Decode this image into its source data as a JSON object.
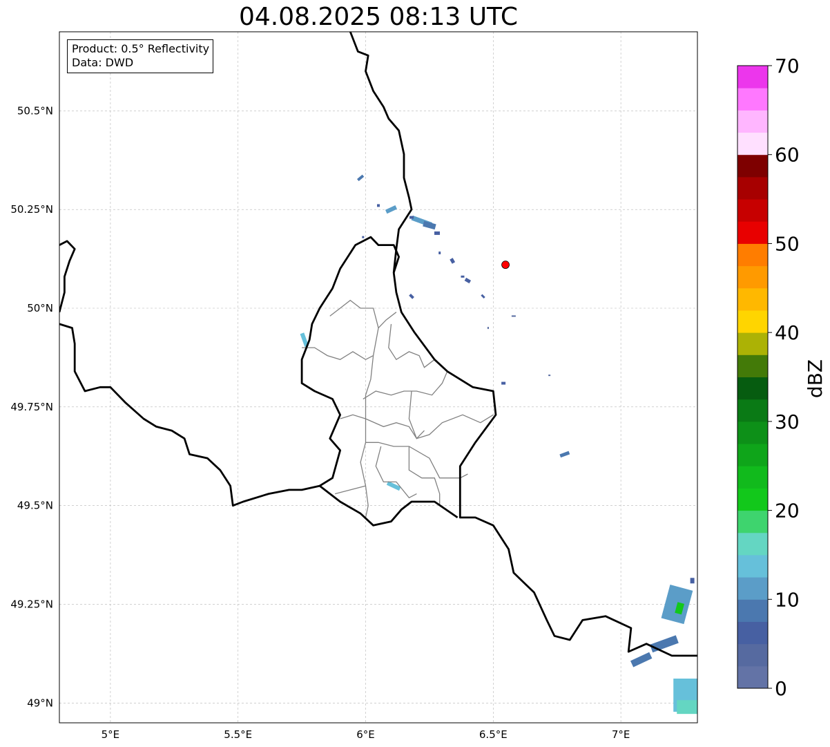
{
  "title": "04.08.2025 08:13 UTC",
  "info_box": {
    "product_label": "Product: 0.5° Reflectivity",
    "data_label": "Data: DWD"
  },
  "colorbar": {
    "label": "dBZ",
    "ticks": [
      {
        "value": 0,
        "label": "0"
      },
      {
        "value": 10,
        "label": "10"
      },
      {
        "value": 20,
        "label": "20"
      },
      {
        "value": 30,
        "label": "30"
      },
      {
        "value": 40,
        "label": "40"
      },
      {
        "value": 50,
        "label": "50"
      },
      {
        "value": 60,
        "label": "60"
      },
      {
        "value": 70,
        "label": "70"
      }
    ],
    "colors": [
      "#6373a6",
      "#566aa0",
      "#4760a2",
      "#4b78af",
      "#5b9dc8",
      "#66c0da",
      "#64d6c2",
      "#3ed46e",
      "#12c81b",
      "#11ba1c",
      "#0fa51a",
      "#0d9018",
      "#0a7a15",
      "#065c10",
      "#437a08",
      "#acb205",
      "#ffd500",
      "#ffb800",
      "#ff9a00",
      "#ff7d00",
      "#e80000",
      "#c70000",
      "#a70000",
      "#7e0000",
      "#ffe0ff",
      "#ffb6ff",
      "#ff78ff",
      "#ec36ec"
    ]
  },
  "map": {
    "lon_range": [
      4.8,
      7.3
    ],
    "lat_range": [
      48.95,
      50.7
    ],
    "x_ticks": [
      {
        "value": 5.0,
        "label": "5°E"
      },
      {
        "value": 5.5,
        "label": "5.5°E"
      },
      {
        "value": 6.0,
        "label": "6°E"
      },
      {
        "value": 6.5,
        "label": "6.5°E"
      },
      {
        "value": 7.0,
        "label": "7°E"
      }
    ],
    "y_ticks": [
      {
        "value": 49.0,
        "label": "49°N"
      },
      {
        "value": 49.25,
        "label": "49.25°N"
      },
      {
        "value": 49.5,
        "label": "49.5°N"
      },
      {
        "value": 49.75,
        "label": "49.75°N"
      },
      {
        "value": 50.0,
        "label": "50°N"
      },
      {
        "value": 50.25,
        "label": "50.25°N"
      },
      {
        "value": 50.5,
        "label": "50.5°N"
      }
    ],
    "radar_site": {
      "lon": 6.548,
      "lat": 50.11,
      "color": "#ff0000"
    },
    "borders": [
      [
        [
          5.94,
          50.7
        ],
        [
          5.97,
          50.65
        ],
        [
          6.01,
          50.64
        ],
        [
          6.0,
          50.6
        ],
        [
          6.03,
          50.55
        ],
        [
          6.07,
          50.51
        ],
        [
          6.09,
          50.48
        ],
        [
          6.13,
          50.45
        ],
        [
          6.15,
          50.39
        ],
        [
          6.15,
          50.33
        ],
        [
          6.17,
          50.28
        ],
        [
          6.18,
          50.25
        ],
        [
          6.13,
          50.2
        ],
        [
          6.12,
          50.15
        ],
        [
          6.11,
          50.09
        ],
        [
          6.12,
          50.04
        ],
        [
          6.14,
          49.99
        ],
        [
          6.19,
          49.94
        ],
        [
          6.27,
          49.87
        ],
        [
          6.32,
          49.84
        ],
        [
          6.42,
          49.8
        ],
        [
          6.5,
          49.79
        ],
        [
          6.51,
          49.73
        ],
        [
          6.43,
          49.66
        ],
        [
          6.37,
          49.6
        ],
        [
          6.37,
          49.47
        ],
        [
          6.43,
          49.47
        ],
        [
          6.5,
          49.45
        ],
        [
          6.56,
          49.39
        ],
        [
          6.58,
          49.33
        ],
        [
          6.66,
          49.28
        ],
        [
          6.71,
          49.21
        ],
        [
          6.74,
          49.17
        ],
        [
          6.8,
          49.16
        ],
        [
          6.85,
          49.21
        ],
        [
          6.94,
          49.22
        ],
        [
          7.04,
          49.19
        ],
        [
          7.03,
          49.13
        ],
        [
          7.1,
          49.15
        ],
        [
          7.2,
          49.12
        ],
        [
          7.3,
          49.12
        ]
      ],
      [
        [
          4.8,
          50.16
        ],
        [
          4.83,
          50.17
        ],
        [
          4.86,
          50.15
        ],
        [
          4.84,
          50.12
        ],
        [
          4.82,
          50.08
        ],
        [
          4.82,
          50.04
        ],
        [
          4.8,
          49.99
        ],
        [
          4.8,
          49.99
        ]
      ],
      [
        [
          4.8,
          49.96
        ],
        [
          4.85,
          49.95
        ],
        [
          4.86,
          49.91
        ],
        [
          4.86,
          49.87
        ],
        [
          4.86,
          49.84
        ],
        [
          4.9,
          49.79
        ],
        [
          4.96,
          49.8
        ],
        [
          5.0,
          49.8
        ],
        [
          5.06,
          49.76
        ],
        [
          5.13,
          49.72
        ],
        [
          5.18,
          49.7
        ],
        [
          5.24,
          49.69
        ],
        [
          5.29,
          49.67
        ],
        [
          5.31,
          49.63
        ],
        [
          5.38,
          49.62
        ],
        [
          5.43,
          49.59
        ],
        [
          5.47,
          49.55
        ],
        [
          5.48,
          49.5
        ],
        [
          5.52,
          49.51
        ],
        [
          5.62,
          49.53
        ],
        [
          5.7,
          49.54
        ],
        [
          5.75,
          49.54
        ],
        [
          5.82,
          49.55
        ],
        [
          5.9,
          49.51
        ],
        [
          5.98,
          49.48
        ],
        [
          6.03,
          49.45
        ],
        [
          6.1,
          49.46
        ],
        [
          6.14,
          49.49
        ],
        [
          6.18,
          49.51
        ],
        [
          6.27,
          49.51
        ],
        [
          6.36,
          49.47
        ]
      ],
      [
        [
          5.82,
          49.55
        ],
        [
          5.87,
          49.57
        ],
        [
          5.9,
          49.64
        ],
        [
          5.86,
          49.67
        ],
        [
          5.9,
          49.73
        ],
        [
          5.87,
          49.77
        ],
        [
          5.8,
          49.79
        ],
        [
          5.75,
          49.81
        ],
        [
          5.75,
          49.87
        ],
        [
          5.78,
          49.92
        ],
        [
          5.79,
          49.96
        ],
        [
          5.82,
          50.0
        ],
        [
          5.87,
          50.05
        ],
        [
          5.9,
          50.1
        ],
        [
          5.96,
          50.16
        ],
        [
          6.02,
          50.18
        ],
        [
          6.05,
          50.16
        ],
        [
          6.11,
          50.16
        ],
        [
          6.13,
          50.13
        ],
        [
          6.11,
          50.09
        ]
      ]
    ],
    "cantons": [
      [
        [
          5.86,
          49.98
        ],
        [
          5.9,
          50.0
        ],
        [
          5.94,
          50.02
        ],
        [
          5.98,
          50.0
        ],
        [
          6.03,
          50.0
        ],
        [
          6.05,
          49.95
        ],
        [
          6.08,
          49.97
        ],
        [
          6.12,
          49.99
        ]
      ],
      [
        [
          6.05,
          49.95
        ],
        [
          6.03,
          49.88
        ],
        [
          6.02,
          49.82
        ],
        [
          6.0,
          49.78
        ]
      ],
      [
        [
          6.1,
          49.96
        ],
        [
          6.09,
          49.9
        ],
        [
          6.12,
          49.87
        ],
        [
          6.17,
          49.89
        ],
        [
          6.21,
          49.88
        ],
        [
          6.23,
          49.85
        ],
        [
          6.27,
          49.87
        ]
      ],
      [
        [
          5.75,
          49.9
        ],
        [
          5.8,
          49.9
        ],
        [
          5.85,
          49.88
        ],
        [
          5.9,
          49.87
        ],
        [
          5.95,
          49.89
        ],
        [
          6.0,
          49.87
        ],
        [
          6.03,
          49.88
        ]
      ],
      [
        [
          5.99,
          49.77
        ],
        [
          6.04,
          49.79
        ],
        [
          6.1,
          49.78
        ],
        [
          6.15,
          49.79
        ],
        [
          6.2,
          49.79
        ],
        [
          6.26,
          49.78
        ],
        [
          6.3,
          49.81
        ],
        [
          6.32,
          49.84
        ]
      ],
      [
        [
          6.0,
          49.78
        ],
        [
          6.0,
          49.72
        ],
        [
          6.0,
          49.66
        ],
        [
          5.98,
          49.61
        ],
        [
          6.0,
          49.55
        ],
        [
          6.01,
          49.5
        ],
        [
          6.0,
          49.47
        ]
      ],
      [
        [
          6.18,
          49.79
        ],
        [
          6.17,
          49.72
        ],
        [
          6.2,
          49.67
        ],
        [
          6.23,
          49.69
        ]
      ],
      [
        [
          6.0,
          49.72
        ],
        [
          6.07,
          49.7
        ],
        [
          6.12,
          49.71
        ],
        [
          6.17,
          49.7
        ],
        [
          6.2,
          49.67
        ],
        [
          6.25,
          49.68
        ],
        [
          6.3,
          49.71
        ],
        [
          6.38,
          49.73
        ],
        [
          6.45,
          49.71
        ],
        [
          6.5,
          49.73
        ]
      ],
      [
        [
          5.9,
          49.72
        ],
        [
          5.95,
          49.73
        ],
        [
          6.0,
          49.72
        ]
      ],
      [
        [
          6.0,
          49.66
        ],
        [
          6.05,
          49.66
        ],
        [
          6.11,
          49.65
        ],
        [
          6.17,
          49.65
        ],
        [
          6.25,
          49.62
        ],
        [
          6.29,
          49.57
        ],
        [
          6.37,
          49.57
        ],
        [
          6.4,
          49.58
        ]
      ],
      [
        [
          6.06,
          49.65
        ],
        [
          6.04,
          49.6
        ],
        [
          6.07,
          49.56
        ],
        [
          6.12,
          49.56
        ],
        [
          6.17,
          49.52
        ],
        [
          6.2,
          49.53
        ]
      ],
      [
        [
          6.17,
          49.65
        ],
        [
          6.17,
          49.59
        ],
        [
          6.22,
          49.57
        ],
        [
          6.27,
          49.57
        ],
        [
          6.29,
          49.53
        ],
        [
          6.29,
          49.5
        ]
      ],
      [
        [
          5.88,
          49.53
        ],
        [
          5.94,
          49.54
        ],
        [
          6.0,
          49.55
        ]
      ]
    ],
    "echoes": [
      {
        "lon": 5.98,
        "lat": 50.33,
        "w": 10,
        "h": 4,
        "rot": -40,
        "dbz": 8
      },
      {
        "lon": 6.1,
        "lat": 50.25,
        "w": 16,
        "h": 6,
        "rot": -25,
        "dbz": 10
      },
      {
        "lon": 6.05,
        "lat": 50.26,
        "w": 4,
        "h": 4,
        "rot": 0,
        "dbz": 5
      },
      {
        "lon": 6.22,
        "lat": 50.22,
        "w": 30,
        "h": 7,
        "rot": 20,
        "dbz": 12
      },
      {
        "lon": 6.25,
        "lat": 50.21,
        "w": 18,
        "h": 8,
        "rot": 15,
        "dbz": 9
      },
      {
        "lon": 6.18,
        "lat": 50.23,
        "w": 6,
        "h": 4,
        "rot": 0,
        "dbz": 6
      },
      {
        "lon": 6.28,
        "lat": 50.19,
        "w": 8,
        "h": 5,
        "rot": 0,
        "dbz": 7
      },
      {
        "lon": 5.99,
        "lat": 50.18,
        "w": 3,
        "h": 3,
        "rot": 0,
        "dbz": 5
      },
      {
        "lon": 6.29,
        "lat": 50.14,
        "w": 3,
        "h": 4,
        "rot": 0,
        "dbz": 5
      },
      {
        "lon": 6.34,
        "lat": 50.12,
        "w": 7,
        "h": 5,
        "rot": 60,
        "dbz": 6
      },
      {
        "lon": 6.38,
        "lat": 50.08,
        "w": 5,
        "h": 3,
        "rot": 0,
        "dbz": 5
      },
      {
        "lon": 6.4,
        "lat": 50.07,
        "w": 8,
        "h": 5,
        "rot": 30,
        "dbz": 6
      },
      {
        "lon": 6.46,
        "lat": 50.03,
        "w": 6,
        "h": 3,
        "rot": 45,
        "dbz": 5
      },
      {
        "lon": 6.18,
        "lat": 50.03,
        "w": 7,
        "h": 4,
        "rot": 45,
        "dbz": 6
      },
      {
        "lon": 6.58,
        "lat": 49.98,
        "w": 6,
        "h": 2,
        "rot": 0,
        "dbz": 4
      },
      {
        "lon": 6.48,
        "lat": 49.95,
        "w": 2,
        "h": 3,
        "rot": 0,
        "dbz": 4
      },
      {
        "lon": 5.76,
        "lat": 49.92,
        "w": 6,
        "h": 20,
        "rot": -20,
        "dbz": 14
      },
      {
        "lon": 6.54,
        "lat": 49.81,
        "w": 6,
        "h": 4,
        "rot": 0,
        "dbz": 6
      },
      {
        "lon": 6.72,
        "lat": 49.83,
        "w": 3,
        "h": 2,
        "rot": 0,
        "dbz": 4
      },
      {
        "lon": 6.78,
        "lat": 49.63,
        "w": 14,
        "h": 5,
        "rot": -20,
        "dbz": 8
      },
      {
        "lon": 6.11,
        "lat": 49.55,
        "w": 20,
        "h": 6,
        "rot": 25,
        "dbz": 13
      },
      {
        "lon": 7.22,
        "lat": 49.25,
        "w": 34,
        "h": 50,
        "rot": 15,
        "dbz": 12
      },
      {
        "lon": 7.23,
        "lat": 49.24,
        "w": 10,
        "h": 16,
        "rot": 15,
        "dbz": 20
      },
      {
        "lon": 7.17,
        "lat": 49.15,
        "w": 40,
        "h": 12,
        "rot": -20,
        "dbz": 9
      },
      {
        "lon": 7.08,
        "lat": 49.11,
        "w": 30,
        "h": 10,
        "rot": -25,
        "dbz": 8
      },
      {
        "lon": 7.28,
        "lat": 49.31,
        "w": 6,
        "h": 8,
        "rot": 0,
        "dbz": 6
      },
      {
        "lon": 7.26,
        "lat": 49.02,
        "w": 40,
        "h": 48,
        "rot": 0,
        "dbz": 14
      },
      {
        "lon": 7.26,
        "lat": 48.99,
        "w": 30,
        "h": 20,
        "rot": 0,
        "dbz": 16
      }
    ]
  }
}
